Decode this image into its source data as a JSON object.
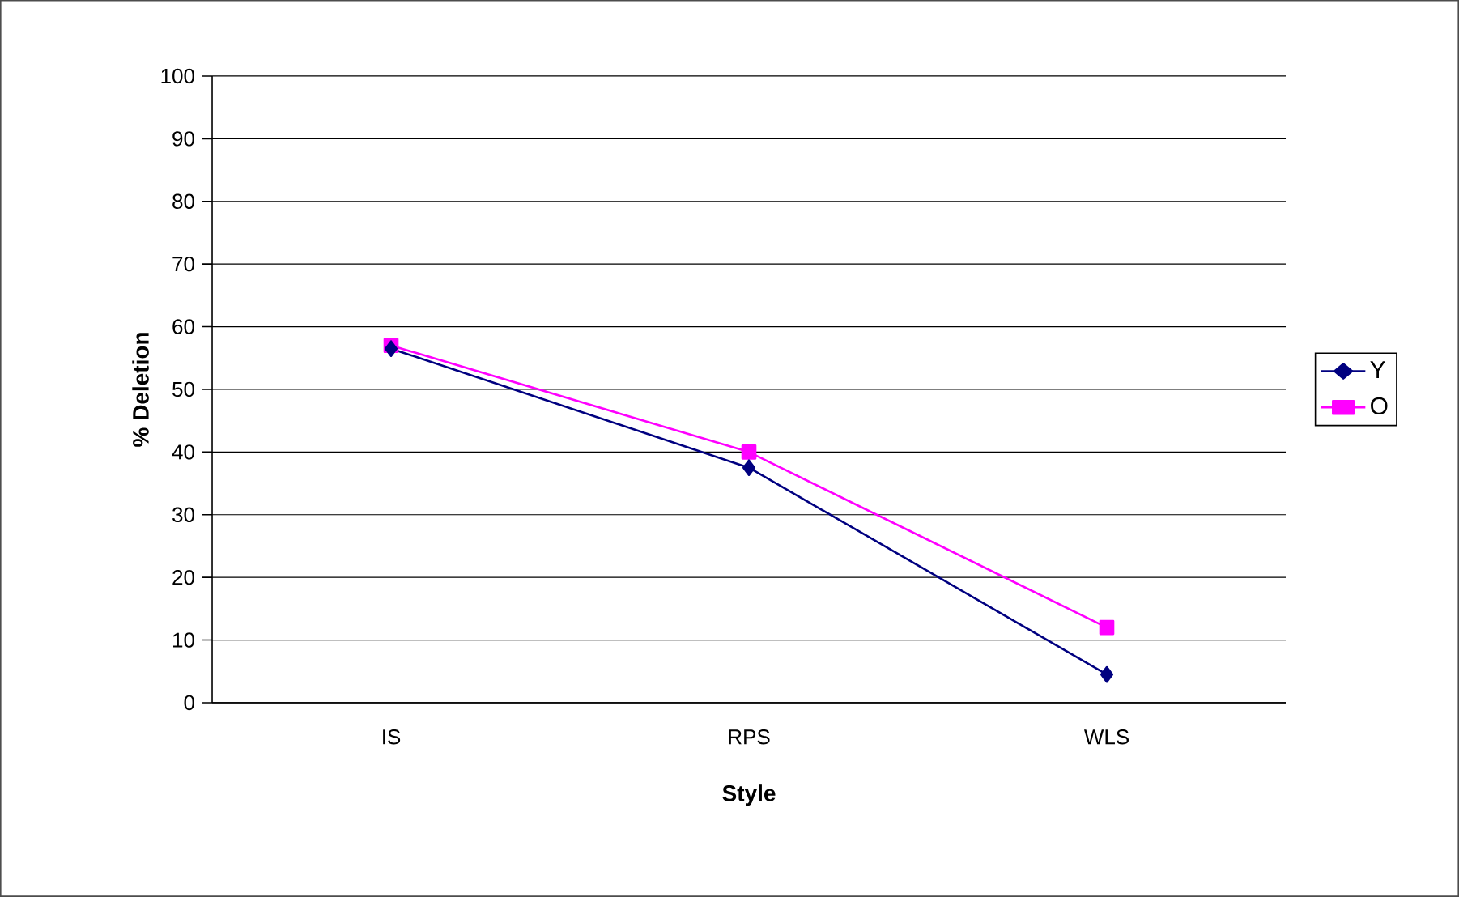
{
  "chart_data": {
    "type": "line",
    "xlabel": "Style",
    "ylabel": "% Deletion",
    "categories": [
      "IS",
      "RPS",
      "WLS"
    ],
    "series": [
      {
        "name": "Y",
        "color": "#000080",
        "marker": "diamond",
        "values": [
          56.5,
          37.5,
          4.5
        ]
      },
      {
        "name": "O",
        "color": "#ff00ff",
        "marker": "square",
        "values": [
          57,
          40,
          12
        ]
      }
    ],
    "ylim": [
      0,
      100
    ],
    "yticks": [
      0,
      10,
      20,
      30,
      40,
      50,
      60,
      70,
      80,
      90,
      100
    ],
    "grid": "y",
    "legend": "right"
  }
}
